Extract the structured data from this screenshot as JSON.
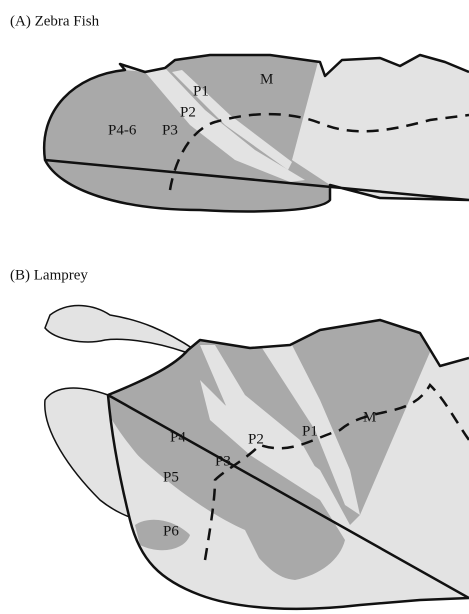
{
  "panels": [
    {
      "title": "(A) Zebra Fish",
      "regions": [
        "P4-6",
        "P3",
        "P2",
        "P1",
        "M"
      ]
    },
    {
      "title": "(B) Lamprey",
      "regions": [
        "P4",
        "P3",
        "P2",
        "P1",
        "M",
        "P5",
        "P6"
      ]
    }
  ]
}
